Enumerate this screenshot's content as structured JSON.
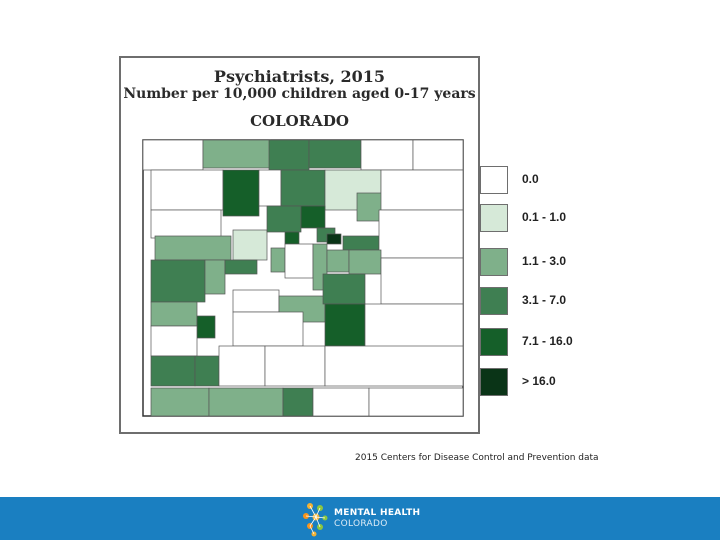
{
  "slide": {
    "title": "Psychiatrists, 2015",
    "subtitle": "Number per 10,000 children aged 0-17 years",
    "state": "COLORADO",
    "source": "2015 Centers for Disease Control and Prevention data"
  },
  "legend": [
    {
      "label": "0.0",
      "color": "#ffffff"
    },
    {
      "label": "0.1 - 1.0",
      "color": "#d6e9d8"
    },
    {
      "label": "1.1 - 3.0",
      "color": "#7fb08a"
    },
    {
      "label": "3.1 - 7.0",
      "color": "#3f7f52"
    },
    {
      "label": "7.1 - 16.0",
      "color": "#155f29"
    },
    {
      "label": "> 16.0",
      "color": "#0a3417"
    }
  ],
  "footer": {
    "logo_line1": "MENTAL HEALTH",
    "logo_line2": "COLORADO",
    "bar_color": "#1a7fc1"
  }
}
